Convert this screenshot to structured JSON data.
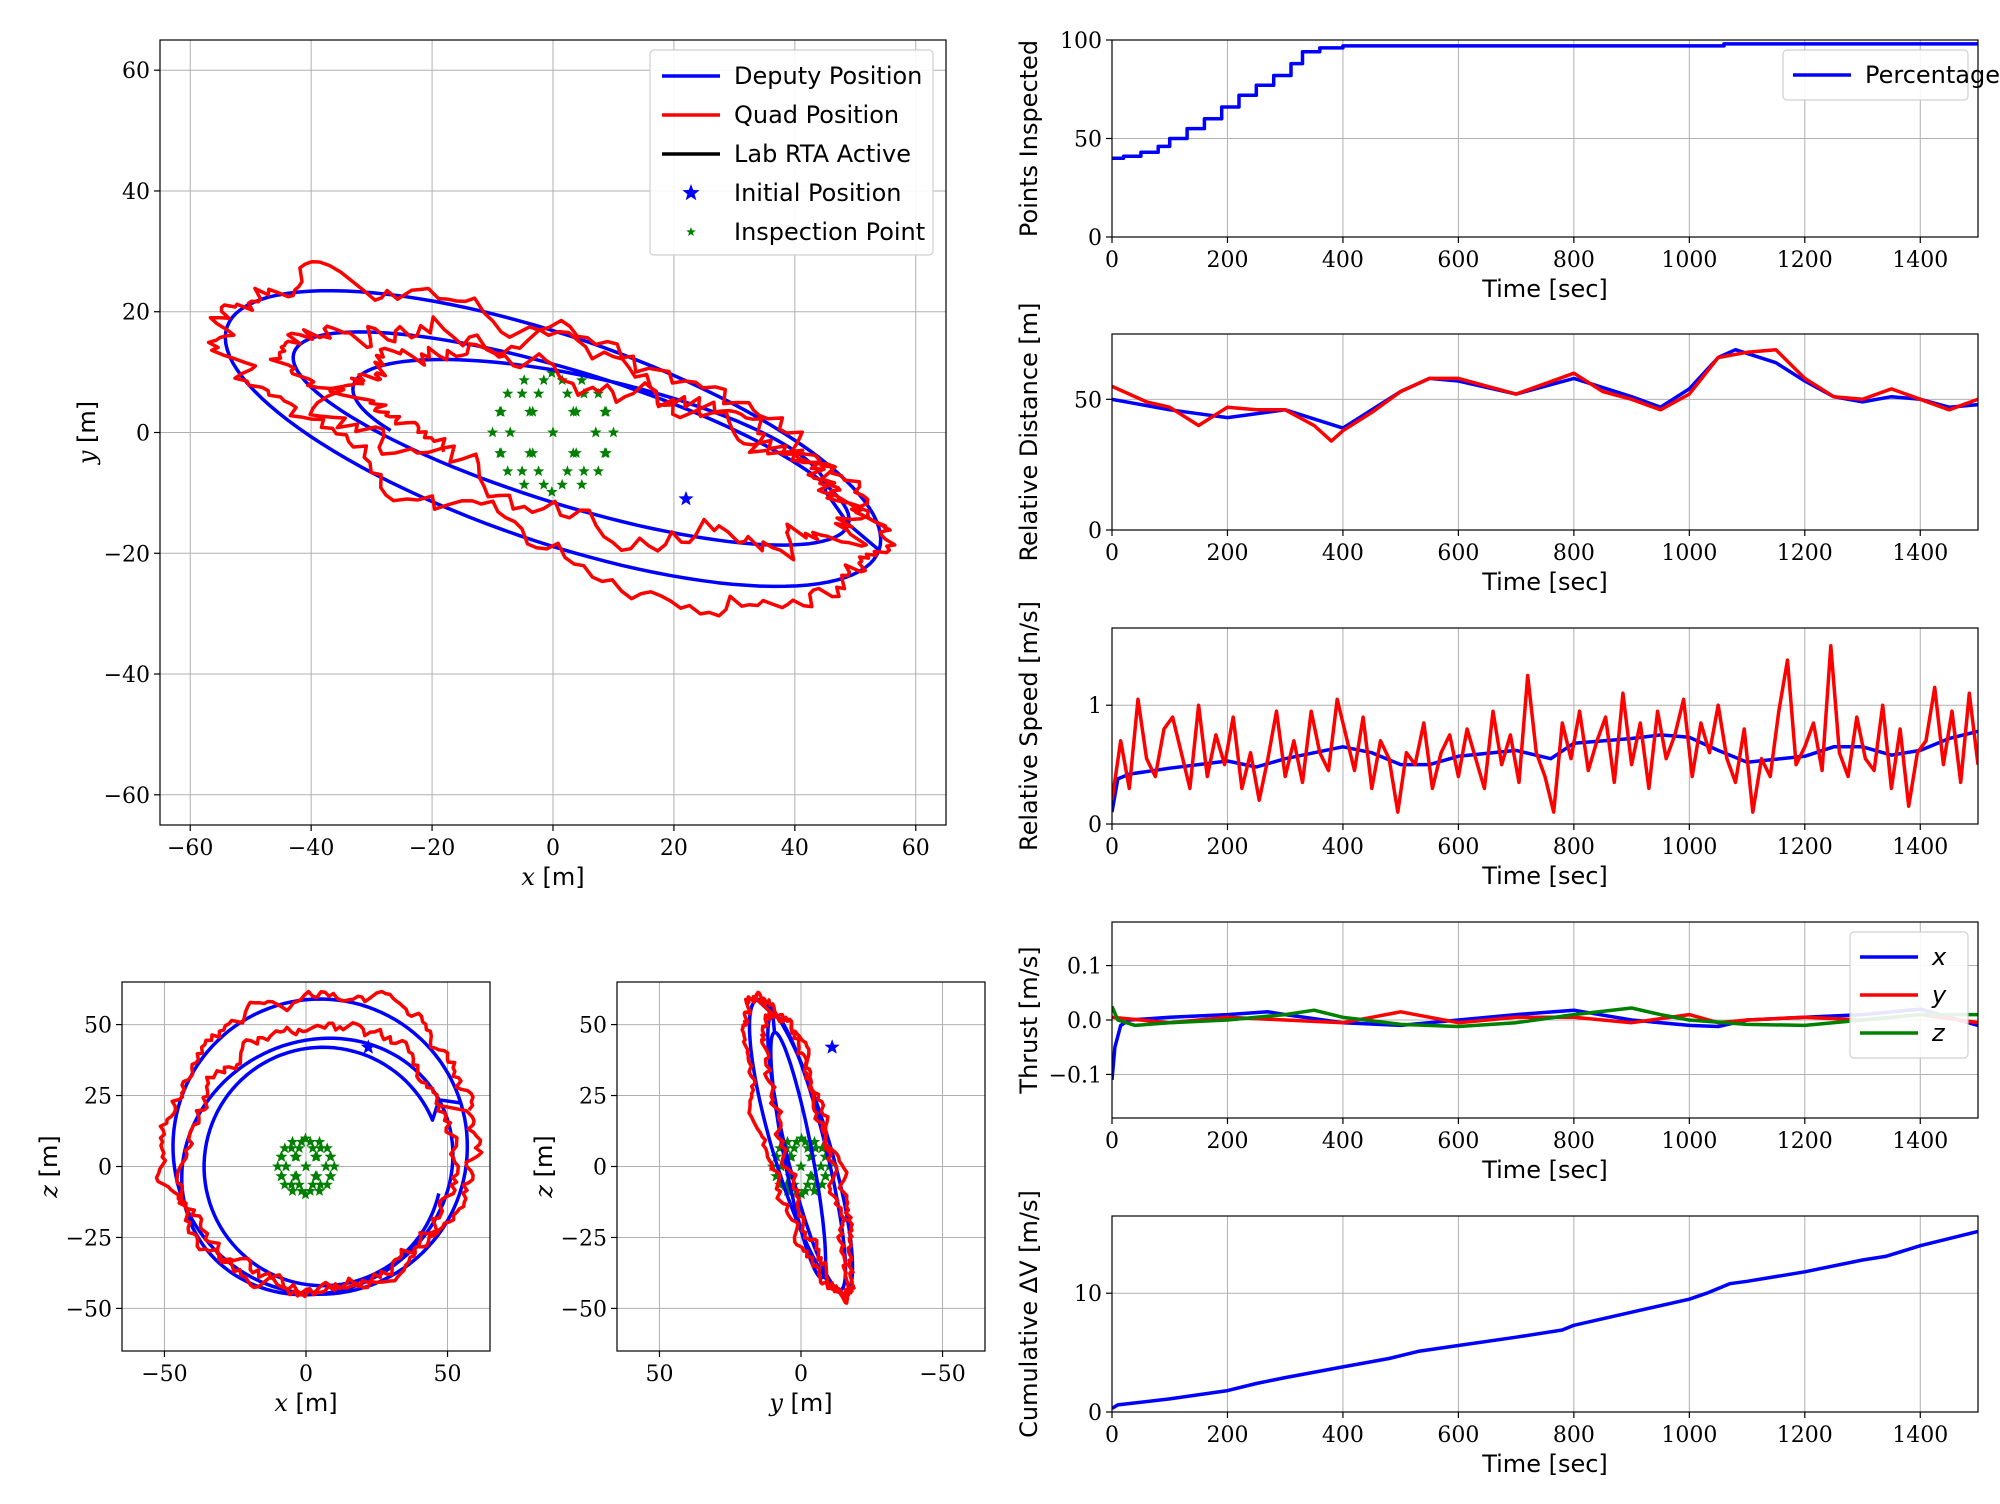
{
  "colors": {
    "deputy": "#0000ff",
    "quad": "#ff0000",
    "rta": "#000000",
    "inspection": "#008000",
    "thrust_x": "#0000ff",
    "thrust_y": "#ff0000",
    "thrust_z": "#008000",
    "grid": "#b0b0b0"
  },
  "chart_data": [
    {
      "id": "xy-plot",
      "type": "line",
      "xlabel_var": "x",
      "xlabel_unit": " [m]",
      "ylabel_var": "y",
      "ylabel_unit": " [m]",
      "xlim": [
        -65,
        65
      ],
      "ylim": [
        -65,
        65
      ],
      "xticks": [
        -60,
        -40,
        -20,
        0,
        20,
        40,
        60
      ],
      "yticks": [
        -60,
        -40,
        -20,
        0,
        20,
        40,
        60
      ],
      "grid": true,
      "legend": {
        "placement": "top-right",
        "entries": [
          {
            "label": "Deputy Position",
            "kind": "line",
            "color": "#0000ff"
          },
          {
            "label": "Quad Position",
            "kind": "line",
            "color": "#ff0000"
          },
          {
            "label": "Lab RTA Active",
            "kind": "line",
            "color": "#000000"
          },
          {
            "label": "Initial Position",
            "kind": "star",
            "color": "#0000ff"
          },
          {
            "label": "Inspection Point",
            "kind": "smallstar",
            "color": "#008000"
          }
        ]
      },
      "initial_position": [
        22,
        -11
      ],
      "sphere_radius": 10
    },
    {
      "id": "xz-plot",
      "type": "line",
      "xlabel_var": "x",
      "xlabel_unit": " [m]",
      "ylabel_var": "z",
      "ylabel_unit": " [m]",
      "xlim": [
        -65,
        65
      ],
      "ylim": [
        -65,
        65
      ],
      "xticks": [
        -50,
        0,
        50
      ],
      "yticks": [
        -50,
        -25,
        0,
        25,
        50
      ],
      "grid": true,
      "initial_position": [
        22,
        42
      ],
      "sphere_radius": 10
    },
    {
      "id": "yz-plot",
      "type": "line",
      "xlabel_var": "y",
      "xlabel_unit": " [m]",
      "ylabel_var": "z",
      "ylabel_unit": " [m]",
      "xlim": [
        65,
        -65
      ],
      "ylim": [
        -65,
        65
      ],
      "xticks": [
        50,
        0,
        -50
      ],
      "yticks": [
        -50,
        -25,
        0,
        25,
        50
      ],
      "grid": true,
      "initial_position": [
        -11,
        42
      ],
      "sphere_radius": 10
    },
    {
      "id": "points-inspected",
      "type": "line",
      "xlabel": "Time [sec]",
      "ylabel": "Points Inspected",
      "xlim": [
        0,
        1500
      ],
      "ylim": [
        0,
        100
      ],
      "xticks": [
        0,
        200,
        400,
        600,
        800,
        1000,
        1200,
        1400
      ],
      "yticks": [
        0,
        50,
        100
      ],
      "grid": true,
      "legend": {
        "placement": "top-right",
        "entries": [
          {
            "label": "Percentage",
            "color": "#0000ff"
          }
        ]
      },
      "series": [
        {
          "name": "Percentage",
          "color": "#0000ff",
          "x": [
            0,
            20,
            50,
            80,
            100,
            130,
            160,
            190,
            220,
            250,
            280,
            310,
            330,
            360,
            400,
            600,
            800,
            1000,
            1060,
            1200,
            1280,
            1500
          ],
          "y": [
            40,
            41,
            43,
            46,
            50,
            55,
            60,
            66,
            72,
            77,
            82,
            88,
            94,
            96,
            97,
            97,
            97,
            97,
            98,
            98,
            98,
            98
          ]
        }
      ]
    },
    {
      "id": "relative-distance",
      "type": "line",
      "xlabel": "Time [sec]",
      "ylabel": "Relative Distance [m]",
      "xlim": [
        0,
        1500
      ],
      "ylim": [
        0,
        75
      ],
      "xticks": [
        0,
        200,
        400,
        600,
        800,
        1000,
        1200,
        1400
      ],
      "yticks": [
        0,
        50
      ],
      "grid": true,
      "series": [
        {
          "name": "Deputy",
          "color": "#0000ff",
          "x": [
            0,
            100,
            200,
            300,
            400,
            500,
            550,
            600,
            700,
            800,
            900,
            950,
            1000,
            1050,
            1080,
            1150,
            1200,
            1250,
            1300,
            1350,
            1400,
            1450,
            1500
          ],
          "y": [
            50,
            46,
            43,
            46,
            39,
            53,
            58,
            57,
            52,
            58,
            51,
            47,
            54,
            66,
            69,
            64,
            57,
            51,
            49,
            51,
            50,
            47,
            48
          ]
        },
        {
          "name": "Quad",
          "color": "#ff0000",
          "x": [
            0,
            30,
            60,
            100,
            150,
            200,
            250,
            300,
            350,
            380,
            400,
            450,
            500,
            550,
            600,
            650,
            700,
            750,
            800,
            850,
            900,
            950,
            1000,
            1050,
            1100,
            1150,
            1200,
            1250,
            1300,
            1350,
            1400,
            1450,
            1500
          ],
          "y": [
            55,
            52,
            49,
            47,
            40,
            47,
            46,
            46,
            40,
            34,
            38,
            45,
            53,
            58,
            58,
            55,
            52,
            56,
            60,
            53,
            50,
            46,
            52,
            66,
            68,
            69,
            58,
            51,
            50,
            54,
            50,
            46,
            50
          ]
        }
      ]
    },
    {
      "id": "relative-speed",
      "type": "line",
      "xlabel": "Time [sec]",
      "ylabel": "Relative Speed [m/s]",
      "xlim": [
        0,
        1500
      ],
      "ylim": [
        0,
        1.65
      ],
      "xticks": [
        0,
        200,
        400,
        600,
        800,
        1000,
        1200,
        1400
      ],
      "yticks": [
        0,
        1
      ],
      "grid": true,
      "series": [
        {
          "name": "Deputy",
          "color": "#0000ff",
          "x": [
            0,
            10,
            30,
            100,
            200,
            250,
            300,
            400,
            450,
            500,
            550,
            600,
            700,
            760,
            800,
            900,
            950,
            1000,
            1050,
            1100,
            1200,
            1250,
            1300,
            1350,
            1400,
            1450,
            1500
          ],
          "y": [
            0.1,
            0.38,
            0.42,
            0.47,
            0.53,
            0.48,
            0.55,
            0.65,
            0.6,
            0.5,
            0.5,
            0.57,
            0.62,
            0.55,
            0.68,
            0.72,
            0.75,
            0.73,
            0.62,
            0.52,
            0.57,
            0.65,
            0.65,
            0.58,
            0.62,
            0.72,
            0.78
          ]
        },
        {
          "name": "Quad",
          "color": "#ff0000",
          "x": [
            0,
            15,
            30,
            45,
            60,
            75,
            90,
            105,
            120,
            135,
            150,
            165,
            180,
            195,
            210,
            225,
            240,
            255,
            270,
            285,
            300,
            315,
            330,
            345,
            360,
            375,
            390,
            405,
            420,
            435,
            450,
            465,
            480,
            495,
            510,
            525,
            540,
            555,
            570,
            585,
            600,
            615,
            630,
            645,
            660,
            675,
            690,
            705,
            720,
            735,
            750,
            765,
            780,
            795,
            810,
            825,
            840,
            855,
            870,
            885,
            900,
            915,
            930,
            945,
            960,
            975,
            990,
            1005,
            1020,
            1035,
            1050,
            1065,
            1080,
            1095,
            1110,
            1125,
            1140,
            1155,
            1170,
            1185,
            1200,
            1215,
            1230,
            1245,
            1260,
            1275,
            1290,
            1305,
            1320,
            1335,
            1350,
            1365,
            1380,
            1395,
            1410,
            1425,
            1440,
            1455,
            1470,
            1485,
            1500
          ],
          "y": [
            0.2,
            0.7,
            0.3,
            1.05,
            0.55,
            0.4,
            0.8,
            0.9,
            0.6,
            0.3,
            1.0,
            0.4,
            0.75,
            0.5,
            0.9,
            0.3,
            0.6,
            0.2,
            0.55,
            0.95,
            0.4,
            0.7,
            0.35,
            0.95,
            0.6,
            0.45,
            1.05,
            0.75,
            0.45,
            0.9,
            0.3,
            0.7,
            0.55,
            0.1,
            0.6,
            0.5,
            0.85,
            0.3,
            0.6,
            0.75,
            0.4,
            0.8,
            0.55,
            0.3,
            0.95,
            0.5,
            0.75,
            0.35,
            1.25,
            0.6,
            0.4,
            0.1,
            0.85,
            0.55,
            0.95,
            0.45,
            0.7,
            0.9,
            0.35,
            1.1,
            0.5,
            0.85,
            0.3,
            0.95,
            0.55,
            0.75,
            1.05,
            0.4,
            0.85,
            0.6,
            1.0,
            0.55,
            0.35,
            0.8,
            0.1,
            0.55,
            0.4,
            0.95,
            1.38,
            0.5,
            0.65,
            0.85,
            0.45,
            1.5,
            0.6,
            0.4,
            0.9,
            0.55,
            0.45,
            1.0,
            0.3,
            0.8,
            0.15,
            0.6,
            0.7,
            1.15,
            0.5,
            0.95,
            0.35,
            1.1,
            0.5
          ]
        }
      ]
    },
    {
      "id": "thrust",
      "type": "line",
      "xlabel": "Time [sec]",
      "ylabel": "Thrust [m/s]",
      "xlim": [
        0,
        1500
      ],
      "ylim": [
        -0.18,
        0.18
      ],
      "xticks": [
        0,
        200,
        400,
        600,
        800,
        1000,
        1200,
        1400
      ],
      "yticks": [
        -0.1,
        0.0,
        0.1
      ],
      "ytick_labels": [
        "−0.1",
        "0.0",
        "0.1"
      ],
      "grid": true,
      "legend": {
        "placement": "right",
        "entries": [
          {
            "label": "x",
            "color": "#0000ff"
          },
          {
            "label": "y",
            "color": "#ff0000"
          },
          {
            "label": "z",
            "color": "#008000"
          }
        ]
      },
      "series": [
        {
          "name": "x",
          "color": "#0000ff",
          "x": [
            0,
            5,
            15,
            30,
            100,
            200,
            270,
            300,
            400,
            500,
            600,
            700,
            800,
            900,
            1000,
            1050,
            1100,
            1200,
            1300,
            1400,
            1500
          ],
          "y": [
            -0.11,
            -0.05,
            -0.01,
            0.0,
            0.005,
            0.01,
            0.015,
            0.01,
            -0.005,
            -0.01,
            0.0,
            0.01,
            0.018,
            0.0,
            -0.01,
            -0.012,
            0.0,
            0.005,
            0.01,
            0.02,
            -0.01
          ]
        },
        {
          "name": "y",
          "color": "#ff0000",
          "x": [
            0,
            50,
            100,
            200,
            300,
            400,
            450,
            500,
            600,
            700,
            800,
            900,
            1000,
            1050,
            1100,
            1200,
            1300,
            1400,
            1500
          ],
          "y": [
            0.005,
            0.0,
            -0.005,
            0.005,
            0.0,
            -0.005,
            0.005,
            0.015,
            -0.005,
            0.005,
            0.005,
            -0.005,
            0.01,
            -0.005,
            0.0,
            0.005,
            0.0,
            0.01,
            -0.005
          ]
        },
        {
          "name": "z",
          "color": "#008000",
          "x": [
            0,
            10,
            40,
            100,
            200,
            300,
            350,
            400,
            500,
            600,
            700,
            800,
            900,
            950,
            1000,
            1100,
            1200,
            1300,
            1400,
            1500
          ],
          "y": [
            0.025,
            0.0,
            -0.01,
            -0.005,
            0.0,
            0.01,
            0.018,
            0.005,
            -0.008,
            -0.012,
            -0.005,
            0.01,
            0.022,
            0.01,
            0.0,
            -0.008,
            -0.01,
            0.0,
            0.01,
            0.01
          ]
        }
      ]
    },
    {
      "id": "cumulative-dv",
      "type": "line",
      "xlabel": "Time [sec]",
      "ylabel": "Cumulative ΔV [m/s]",
      "xlim": [
        0,
        1500
      ],
      "ylim": [
        0,
        16.5
      ],
      "xticks": [
        0,
        200,
        400,
        600,
        800,
        1000,
        1200,
        1400
      ],
      "yticks": [
        0,
        10
      ],
      "grid": true,
      "series": [
        {
          "name": "ΔV",
          "color": "#0000ff",
          "x": [
            0,
            10,
            100,
            200,
            250,
            300,
            400,
            480,
            530,
            600,
            700,
            780,
            800,
            900,
            1000,
            1030,
            1070,
            1100,
            1200,
            1300,
            1340,
            1400,
            1500
          ],
          "y": [
            0.3,
            0.6,
            1.1,
            1.8,
            2.4,
            2.9,
            3.8,
            4.5,
            5.1,
            5.6,
            6.3,
            6.9,
            7.3,
            8.4,
            9.5,
            10.0,
            10.8,
            11.0,
            11.8,
            12.8,
            13.1,
            14.0,
            15.2
          ]
        }
      ]
    }
  ]
}
